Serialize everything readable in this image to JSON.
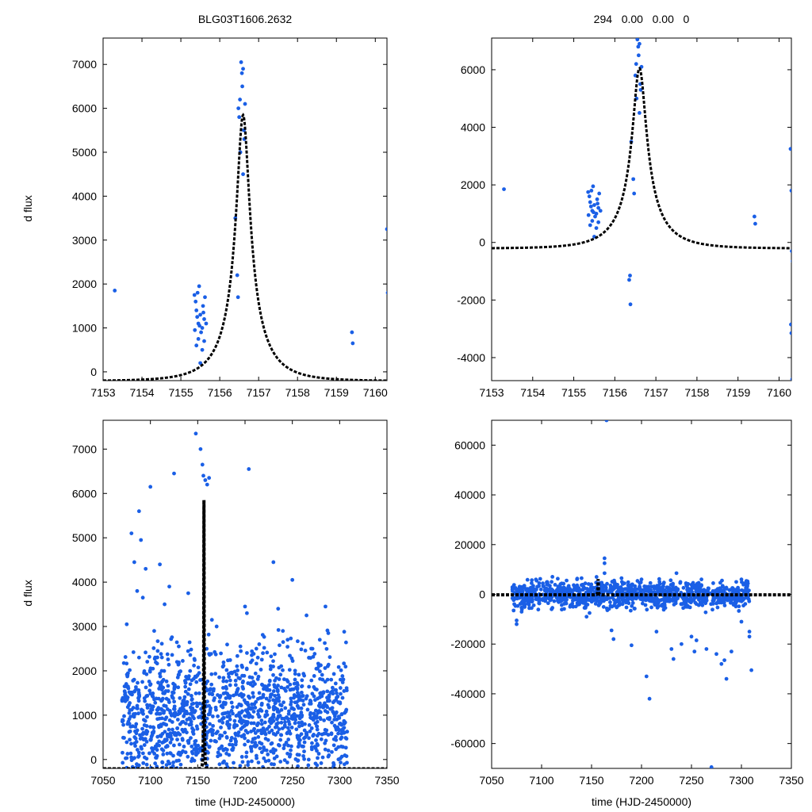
{
  "titles": {
    "left": "BLG03T1606.2632",
    "right": "294   0.00   0.00   0"
  },
  "colors": {
    "points": "#1a5fe6",
    "model": "#000000",
    "axes": "#000000"
  },
  "chart_data": [
    {
      "type": "scatter",
      "panel": "top-left",
      "ylabel": "d flux",
      "xlim": [
        7153,
        7160.3
      ],
      "ylim": [
        -200,
        7600
      ],
      "xticks": [
        7153,
        7154,
        7155,
        7156,
        7157,
        7158,
        7159,
        7160
      ],
      "yticks": [
        0,
        1000,
        2000,
        3000,
        4000,
        5000,
        6000,
        7000
      ],
      "model": {
        "t0": 7156.6,
        "u0": 0.17,
        "tE": 1.0,
        "f0": 5850,
        "base": -210,
        "style": "dashed"
      },
      "points": [
        [
          7153.3,
          1850
        ],
        [
          7155.35,
          1750
        ],
        [
          7155.38,
          1600
        ],
        [
          7155.4,
          1400
        ],
        [
          7155.42,
          1250
        ],
        [
          7155.45,
          1100
        ],
        [
          7155.47,
          1950
        ],
        [
          7155.5,
          1300
        ],
        [
          7155.52,
          900
        ],
        [
          7155.55,
          1000
        ],
        [
          7155.57,
          1500
        ],
        [
          7155.6,
          1200
        ],
        [
          7155.62,
          1700
        ],
        [
          7155.65,
          1100
        ],
        [
          7155.4,
          600
        ],
        [
          7155.45,
          750
        ],
        [
          7155.5,
          200
        ],
        [
          7155.55,
          500
        ],
        [
          7155.6,
          700
        ],
        [
          7155.43,
          1800
        ],
        [
          7155.48,
          1050
        ],
        [
          7155.58,
          1350
        ],
        [
          7155.36,
          950
        ],
        [
          7156.4,
          3500
        ],
        [
          7156.45,
          2200
        ],
        [
          7156.47,
          1700
        ],
        [
          7156.5,
          5800
        ],
        [
          7156.52,
          6200
        ],
        [
          7156.55,
          7050
        ],
        [
          7156.57,
          6800
        ],
        [
          7156.6,
          6900
        ],
        [
          7156.62,
          5500
        ],
        [
          7156.58,
          6500
        ],
        [
          7156.53,
          5000
        ],
        [
          7156.6,
          4500
        ],
        [
          7156.65,
          6100
        ],
        [
          7156.63,
          5300
        ],
        [
          7156.48,
          6000
        ],
        [
          7159.4,
          900
        ],
        [
          7159.42,
          650
        ],
        [
          7160.3,
          3250
        ],
        [
          7160.32,
          1800
        ]
      ]
    },
    {
      "type": "scatter",
      "panel": "top-right",
      "ylabel": "",
      "xlim": [
        7153,
        7160.3
      ],
      "ylim": [
        -4800,
        7100
      ],
      "xticks": [
        7153,
        7154,
        7155,
        7156,
        7157,
        7158,
        7159,
        7160
      ],
      "yticks": [
        -4000,
        -2000,
        0,
        2000,
        4000,
        6000
      ],
      "model": {
        "t0": 7156.6,
        "u0": 0.17,
        "tE": 1.0,
        "f0": 6050,
        "base": -210,
        "style": "dashed"
      },
      "points": [
        [
          7153.3,
          1850
        ],
        [
          7155.35,
          1750
        ],
        [
          7155.38,
          1600
        ],
        [
          7155.4,
          1400
        ],
        [
          7155.42,
          1250
        ],
        [
          7155.45,
          1100
        ],
        [
          7155.47,
          1950
        ],
        [
          7155.5,
          1300
        ],
        [
          7155.52,
          900
        ],
        [
          7155.55,
          1000
        ],
        [
          7155.57,
          1500
        ],
        [
          7155.6,
          1200
        ],
        [
          7155.62,
          1700
        ],
        [
          7155.65,
          1100
        ],
        [
          7155.4,
          600
        ],
        [
          7155.45,
          750
        ],
        [
          7155.5,
          200
        ],
        [
          7155.55,
          500
        ],
        [
          7155.6,
          700
        ],
        [
          7155.43,
          1800
        ],
        [
          7155.48,
          1050
        ],
        [
          7155.58,
          1350
        ],
        [
          7155.36,
          950
        ],
        [
          7156.35,
          -1300
        ],
        [
          7156.37,
          -1150
        ],
        [
          7156.38,
          -2150
        ],
        [
          7156.4,
          3500
        ],
        [
          7156.45,
          2200
        ],
        [
          7156.47,
          1700
        ],
        [
          7156.5,
          5800
        ],
        [
          7156.52,
          6200
        ],
        [
          7156.55,
          7050
        ],
        [
          7156.57,
          6800
        ],
        [
          7156.6,
          6900
        ],
        [
          7156.62,
          5500
        ],
        [
          7156.58,
          6500
        ],
        [
          7156.53,
          5000
        ],
        [
          7156.6,
          4500
        ],
        [
          7156.65,
          6100
        ],
        [
          7156.63,
          5300
        ],
        [
          7159.4,
          900
        ],
        [
          7159.42,
          650
        ],
        [
          7160.28,
          3250
        ],
        [
          7160.3,
          1800
        ],
        [
          7160.31,
          -300
        ],
        [
          7160.33,
          -650
        ],
        [
          7160.29,
          -2850
        ],
        [
          7160.3,
          -3150
        ],
        [
          7160.32,
          -4750
        ]
      ]
    },
    {
      "type": "scatter",
      "panel": "bottom-left",
      "ylabel": "d flux",
      "xlabel": "time (HJD-2450000)",
      "xlim": [
        7050,
        7350
      ],
      "ylim": [
        -200,
        7650
      ],
      "xticks": [
        7050,
        7100,
        7150,
        7200,
        7250,
        7300,
        7350
      ],
      "yticks": [
        0,
        1000,
        2000,
        3000,
        4000,
        5000,
        6000,
        7000
      ],
      "model": {
        "t0": 7156.6,
        "u0": 0.17,
        "tE": 1.0,
        "f0": 5850,
        "base": -210,
        "style": "dashed"
      },
      "cloud": {
        "seed": 17,
        "count": 1500,
        "xmin": 7070,
        "xmax": 7308,
        "ymin": -150,
        "ymax": 2300
      },
      "points": [
        [
          7075,
          3050
        ],
        [
          7080,
          5100
        ],
        [
          7083,
          4450
        ],
        [
          7086,
          3800
        ],
        [
          7088,
          5600
        ],
        [
          7090,
          4950
        ],
        [
          7092,
          3650
        ],
        [
          7095,
          4300
        ],
        [
          7100,
          6150
        ],
        [
          7104,
          2900
        ],
        [
          7110,
          4400
        ],
        [
          7115,
          3500
        ],
        [
          7120,
          3900
        ],
        [
          7125,
          6450
        ],
        [
          7140,
          3750
        ],
        [
          7148,
          7350
        ],
        [
          7153,
          7000
        ],
        [
          7155,
          6650
        ],
        [
          7156,
          6400
        ],
        [
          7158,
          6300
        ],
        [
          7160,
          6200
        ],
        [
          7162,
          6350
        ],
        [
          7165,
          3150
        ],
        [
          7170,
          3000
        ],
        [
          7200,
          3450
        ],
        [
          7202,
          3300
        ],
        [
          7204,
          6550
        ],
        [
          7230,
          4450
        ],
        [
          7235,
          3400
        ],
        [
          7240,
          2900
        ],
        [
          7250,
          4050
        ],
        [
          7265,
          3250
        ],
        [
          7270,
          2500
        ],
        [
          7285,
          3450
        ],
        [
          7288,
          2850
        ],
        [
          7105,
          2300
        ],
        [
          7130,
          2550
        ],
        [
          7215,
          2600
        ],
        [
          7245,
          2700
        ]
      ]
    },
    {
      "type": "scatter",
      "panel": "bottom-right",
      "ylabel": "",
      "xlabel": "time (HJD-2450000)",
      "xlim": [
        7050,
        7350
      ],
      "ylim": [
        -70000,
        70000
      ],
      "xticks": [
        7050,
        7100,
        7150,
        7200,
        7250,
        7300,
        7350
      ],
      "yticks": [
        -60000,
        -40000,
        -20000,
        0,
        20000,
        40000,
        60000
      ],
      "model": {
        "t0": 7156.6,
        "u0": 0.17,
        "tE": 1.0,
        "f0": 6050,
        "base": -210,
        "style": "dashed"
      },
      "cloud": {
        "seed": 29,
        "count": 1100,
        "xmin": 7070,
        "xmax": 7308,
        "ymin": -4000,
        "ymax": 4500
      },
      "points": [
        [
          7075,
          -12000
        ],
        [
          7075,
          -10500
        ],
        [
          7072,
          -6500
        ],
        [
          7080,
          -7000
        ],
        [
          7090,
          -5500
        ],
        [
          7110,
          -6000
        ],
        [
          7145,
          -9000
        ],
        [
          7148,
          -7500
        ],
        [
          7165,
          70000
        ],
        [
          7163,
          14500
        ],
        [
          7163,
          12500
        ],
        [
          7170,
          -14500
        ],
        [
          7172,
          -18000
        ],
        [
          7190,
          -20500
        ],
        [
          7205,
          -33000
        ],
        [
          7208,
          -42000
        ],
        [
          7215,
          -15000
        ],
        [
          7230,
          -22000
        ],
        [
          7232,
          -26000
        ],
        [
          7240,
          -20000
        ],
        [
          7250,
          -17000
        ],
        [
          7253,
          -23000
        ],
        [
          7255,
          -18500
        ],
        [
          7265,
          -22000
        ],
        [
          7270,
          -69500
        ],
        [
          7275,
          -24000
        ],
        [
          7280,
          -28000
        ],
        [
          7283,
          -26500
        ],
        [
          7285,
          -34000
        ],
        [
          7290,
          -23000
        ],
        [
          7300,
          -11000
        ],
        [
          7308,
          -15000
        ],
        [
          7308,
          -17000
        ],
        [
          7310,
          -30500
        ],
        [
          7163,
          8500
        ],
        [
          7180,
          6500
        ],
        [
          7235,
          8500
        ],
        [
          7200,
          6000
        ],
        [
          7155,
          7000
        ],
        [
          7140,
          6500
        ],
        [
          7095,
          5500
        ],
        [
          7090,
          4500
        ],
        [
          7110,
          5000
        ],
        [
          7260,
          6000
        ],
        [
          7300,
          6000
        ],
        [
          7218,
          5000
        ]
      ]
    }
  ]
}
